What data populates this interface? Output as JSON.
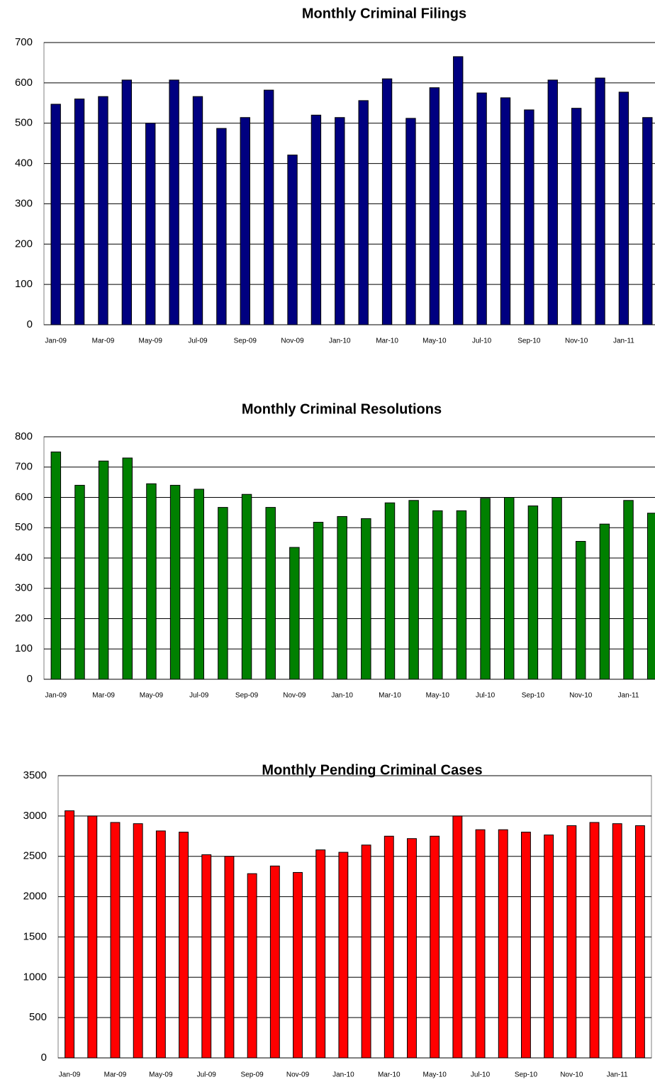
{
  "chart_data": [
    {
      "type": "bar",
      "title": "Monthly Criminal Filings",
      "categories": [
        "Jan-09",
        null,
        "Mar-09",
        null,
        "May-09",
        null,
        "Jul-09",
        null,
        "Sep-09",
        null,
        "Nov-09",
        null,
        "Jan-10",
        null,
        "Mar-10",
        null,
        "May-10",
        null,
        "Jul-10",
        null,
        "Sep-10",
        null,
        "Nov-10",
        null,
        "Jan-11",
        null
      ],
      "values": [
        547,
        560,
        566,
        607,
        500,
        607,
        566,
        487,
        514,
        582,
        421,
        520,
        514,
        556,
        610,
        512,
        588,
        665,
        575,
        563,
        533,
        607,
        537,
        612,
        577,
        514
      ],
      "color": "#000080",
      "ylim": [
        0,
        700
      ],
      "yticks": [
        0,
        100,
        200,
        300,
        400,
        500,
        600,
        700
      ],
      "grid": true
    },
    {
      "type": "bar",
      "title": "Monthly Criminal Resolutions",
      "categories": [
        "Jan-09",
        null,
        "Mar-09",
        null,
        "May-09",
        null,
        "Jul-09",
        null,
        "Sep-09",
        null,
        "Nov-09",
        null,
        "Jan-10",
        null,
        "Mar-10",
        null,
        "May-10",
        null,
        "Jul-10",
        null,
        "Sep-10",
        null,
        "Nov-10",
        null,
        "Jan-11",
        null
      ],
      "values": [
        750,
        640,
        720,
        730,
        645,
        640,
        627,
        567,
        610,
        567,
        435,
        518,
        537,
        530,
        582,
        590,
        556,
        556,
        597,
        600,
        572,
        600,
        455,
        512,
        590,
        548
      ],
      "color": "#008000",
      "ylim": [
        0,
        800
      ],
      "yticks": [
        0,
        100,
        200,
        300,
        400,
        500,
        600,
        700,
        800
      ],
      "grid": true
    },
    {
      "type": "bar",
      "title": "Monthly Pending Criminal Cases",
      "categories": [
        "Jan-09",
        null,
        "Mar-09",
        null,
        "May-09",
        null,
        "Jul-09",
        null,
        "Sep-09",
        null,
        "Nov-09",
        null,
        "Jan-10",
        null,
        "Mar-10",
        null,
        "May-10",
        null,
        "Jul-10",
        null,
        "Sep-10",
        null,
        "Nov-10",
        null,
        "Jan-11",
        null
      ],
      "values": [
        3065,
        3000,
        2920,
        2905,
        2815,
        2800,
        2520,
        2500,
        2285,
        2380,
        2300,
        2580,
        2550,
        2640,
        2750,
        2720,
        2750,
        3000,
        2830,
        2830,
        2800,
        2765,
        2880,
        2920,
        2905,
        2880
      ],
      "color": "#ff0000",
      "ylim": [
        0,
        3500
      ],
      "yticks": [
        0,
        500,
        1000,
        1500,
        2000,
        2500,
        3000,
        3500
      ],
      "grid": true
    }
  ]
}
